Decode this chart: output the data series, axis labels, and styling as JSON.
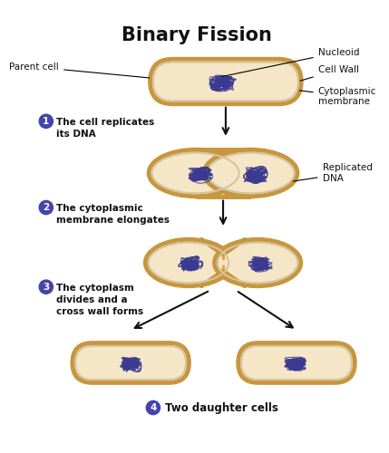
{
  "title": "Binary Fission",
  "title_fontsize": 15,
  "title_fontweight": "bold",
  "cell_fill": "#F5E6C8",
  "cell_wall_color": "#C8963C",
  "cell_membrane_color": "#D4C4A0",
  "cell_inner_fill": "#F0DEB8",
  "dna_color": "#3A3A90",
  "arrow_color": "#111111",
  "step_circle_color": "#4444AA",
  "dotted_line_color": "#E8A030",
  "background": "#FFFFFF",
  "labels": {
    "parent_cell": "Parent cell",
    "nucleoid": "Nucleoid",
    "cell_wall": "Cell Wall",
    "cytoplasmic_membrane": "Cytoplasmic\nmembrane",
    "replicated_dna": "Replicated\nDNA",
    "step1": "The cell replicates\nits DNA",
    "step2": "The cytoplasmic\nmembrane elongates",
    "step3": "The cytoplasm\ndivides and a\ncross wall forms",
    "step4": "Two daughter cells"
  }
}
